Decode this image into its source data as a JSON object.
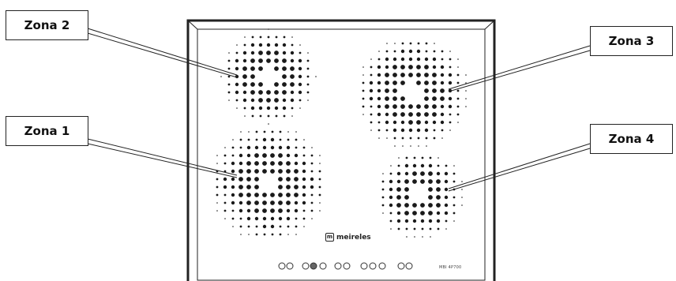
{
  "zones": [
    {
      "id": "z1",
      "label": "Zona 1"
    },
    {
      "id": "z2",
      "label": "Zona 2"
    },
    {
      "id": "z3",
      "label": "Zona 3"
    },
    {
      "id": "z4",
      "label": "Zona 4"
    }
  ],
  "cooktop": {
    "brand": "meireles",
    "brand_icon": "m-logo-icon",
    "model": "MBI 4P700",
    "control_icons": [
      "power-icon",
      "child-lock-icon",
      "timer-icon",
      "boost-icon",
      "pause-icon"
    ]
  },
  "colors": {
    "outline": "#222222",
    "dots": "#1a1a1a",
    "background": "#ffffff"
  }
}
